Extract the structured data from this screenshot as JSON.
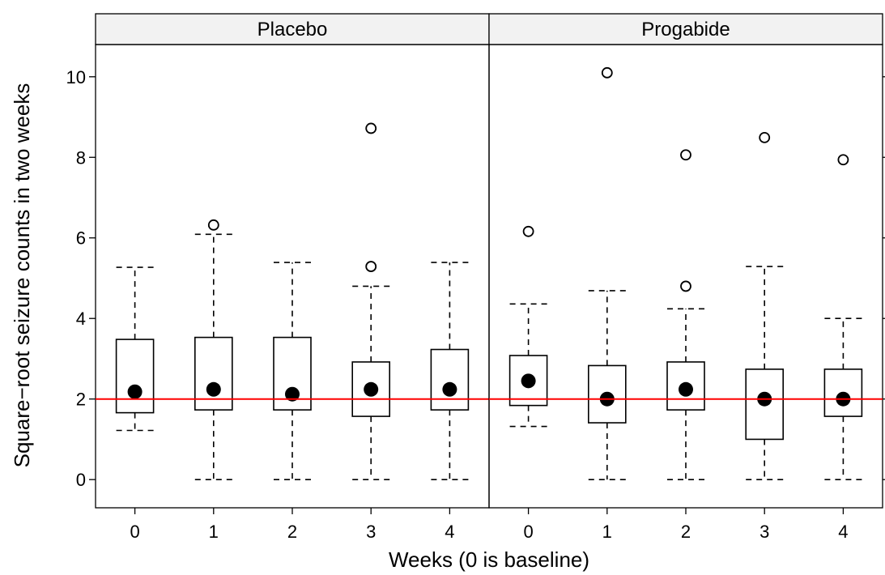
{
  "chart_data": {
    "type": "box",
    "xlabel": "Weeks (0 is baseline)",
    "ylabel": "Square−root seizure counts in two weeks",
    "ylim": [
      -0.7,
      10.8
    ],
    "yticks": [
      0,
      2,
      4,
      6,
      8,
      10
    ],
    "reference_line": {
      "y": 2,
      "color": "#ff0000"
    },
    "categories": [
      "0",
      "1",
      "2",
      "3",
      "4"
    ],
    "panels": [
      {
        "name": "Placebo",
        "boxes": [
          {
            "week": "0",
            "whisker_low": 1.22,
            "q1": 1.66,
            "median": 2.18,
            "q3": 3.48,
            "whisker_high": 5.27,
            "outliers": []
          },
          {
            "week": "1",
            "whisker_low": 0,
            "q1": 1.73,
            "median": 2.24,
            "q3": 3.53,
            "whisker_high": 6.09,
            "outliers": [
              6.32
            ]
          },
          {
            "week": "2",
            "whisker_low": 0,
            "q1": 1.73,
            "median": 2.12,
            "q3": 3.53,
            "whisker_high": 5.39,
            "outliers": []
          },
          {
            "week": "3",
            "whisker_low": 0,
            "q1": 1.57,
            "median": 2.24,
            "q3": 2.92,
            "whisker_high": 4.8,
            "outliers": [
              5.29,
              8.72
            ]
          },
          {
            "week": "4",
            "whisker_low": 0,
            "q1": 1.73,
            "median": 2.24,
            "q3": 3.23,
            "whisker_high": 5.39,
            "outliers": []
          }
        ]
      },
      {
        "name": "Progabide",
        "boxes": [
          {
            "week": "0",
            "whisker_low": 1.32,
            "q1": 1.84,
            "median": 2.45,
            "q3": 3.08,
            "whisker_high": 4.36,
            "outliers": [
              6.16
            ]
          },
          {
            "week": "1",
            "whisker_low": 0,
            "q1": 1.41,
            "median": 2.0,
            "q3": 2.83,
            "whisker_high": 4.69,
            "outliers": [
              10.1
            ]
          },
          {
            "week": "2",
            "whisker_low": 0,
            "q1": 1.73,
            "median": 2.24,
            "q3": 2.92,
            "whisker_high": 4.24,
            "outliers": [
              4.8,
              8.06
            ]
          },
          {
            "week": "3",
            "whisker_low": 0,
            "q1": 1.0,
            "median": 2.0,
            "q3": 2.74,
            "whisker_high": 5.29,
            "outliers": [
              8.49
            ]
          },
          {
            "week": "4",
            "whisker_low": 0,
            "q1": 1.57,
            "median": 2.0,
            "q3": 2.74,
            "whisker_high": 4.0,
            "outliers": [
              7.94
            ]
          }
        ]
      }
    ]
  }
}
